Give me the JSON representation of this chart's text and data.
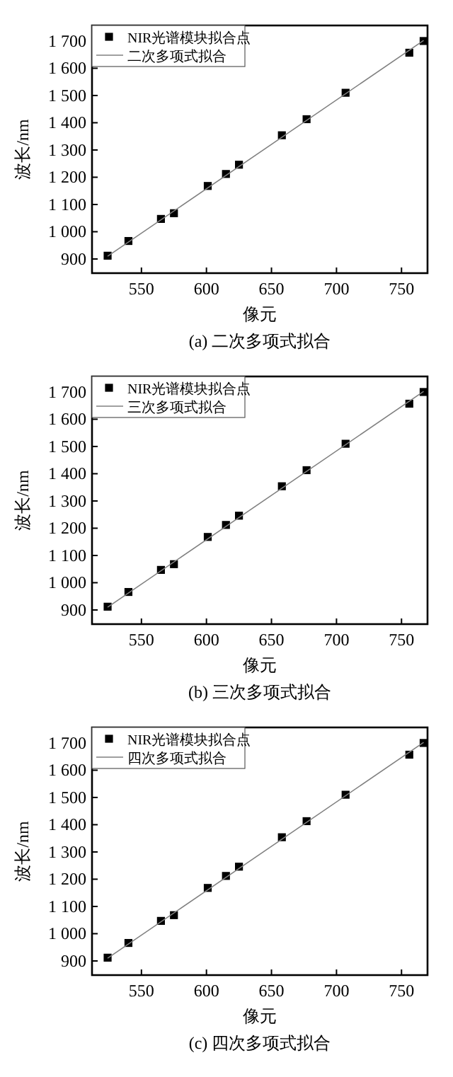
{
  "chart_data": [
    {
      "type": "scatter",
      "title": "(a) 二次多项式拟合",
      "xlabel": "像元",
      "ylabel": "波长/nm",
      "xlim": [
        512,
        770
      ],
      "ylim": [
        848,
        1757
      ],
      "xticks": [
        550,
        600,
        650,
        700,
        750
      ],
      "yticks": [
        {
          "value": 900,
          "label": "900"
        },
        {
          "value": 1000,
          "label": "1 000"
        },
        {
          "value": 1100,
          "label": "1 100"
        },
        {
          "value": 1200,
          "label": "1 200"
        },
        {
          "value": 1300,
          "label": "1 300"
        },
        {
          "value": 1400,
          "label": "1 400"
        },
        {
          "value": 1500,
          "label": "1 500"
        },
        {
          "value": 1600,
          "label": "1 600"
        },
        {
          "value": 1700,
          "label": "1 700"
        }
      ],
      "legend": "top left",
      "series": [
        {
          "name": "NIR光谱模块拟合点",
          "marker": "square",
          "color": "#000000",
          "x": [
            524,
            540,
            565,
            575,
            601,
            615,
            625,
            658,
            677,
            707,
            756,
            767
          ],
          "values": [
            912,
            966,
            1047,
            1068,
            1168,
            1212,
            1246,
            1354,
            1413,
            1510,
            1657,
            1700
          ]
        },
        {
          "name": "二次多项式拟合",
          "type": "line",
          "marker": "none",
          "color": "#808080",
          "x": [
            524,
            767
          ],
          "values": [
            910,
            1702
          ]
        }
      ]
    },
    {
      "type": "scatter",
      "title": "(b) 三次多项式拟合",
      "xlabel": "像元",
      "ylabel": "波长/nm",
      "xlim": [
        512,
        770
      ],
      "ylim": [
        848,
        1757
      ],
      "xticks": [
        550,
        600,
        650,
        700,
        750
      ],
      "yticks": [
        {
          "value": 900,
          "label": "900"
        },
        {
          "value": 1000,
          "label": "1 000"
        },
        {
          "value": 1100,
          "label": "1 100"
        },
        {
          "value": 1200,
          "label": "1 200"
        },
        {
          "value": 1300,
          "label": "1 300"
        },
        {
          "value": 1400,
          "label": "1 400"
        },
        {
          "value": 1500,
          "label": "1 500"
        },
        {
          "value": 1600,
          "label": "1 600"
        },
        {
          "value": 1700,
          "label": "1 700"
        }
      ],
      "legend": "top left",
      "series": [
        {
          "name": "NIR光谱模块拟合点",
          "marker": "square",
          "color": "#000000",
          "x": [
            524,
            540,
            565,
            575,
            601,
            615,
            625,
            658,
            677,
            707,
            756,
            767
          ],
          "values": [
            912,
            966,
            1047,
            1068,
            1168,
            1212,
            1246,
            1354,
            1413,
            1510,
            1657,
            1700
          ]
        },
        {
          "name": "三次多项式拟合",
          "type": "line",
          "marker": "none",
          "color": "#808080",
          "x": [
            524,
            767
          ],
          "values": [
            910,
            1702
          ]
        }
      ]
    },
    {
      "type": "scatter",
      "title": "(c) 四次多项式拟合",
      "xlabel": "像元",
      "ylabel": "波长/nm",
      "xlim": [
        512,
        770
      ],
      "ylim": [
        848,
        1757
      ],
      "xticks": [
        550,
        600,
        650,
        700,
        750
      ],
      "yticks": [
        {
          "value": 900,
          "label": "900"
        },
        {
          "value": 1000,
          "label": "1 000"
        },
        {
          "value": 1100,
          "label": "1 100"
        },
        {
          "value": 1200,
          "label": "1 200"
        },
        {
          "value": 1300,
          "label": "1 300"
        },
        {
          "value": 1400,
          "label": "1 400"
        },
        {
          "value": 1500,
          "label": "1 500"
        },
        {
          "value": 1600,
          "label": "1 600"
        },
        {
          "value": 1700,
          "label": "1 700"
        }
      ],
      "legend": "top left",
      "series": [
        {
          "name": "NIR光谱模块拟合点",
          "marker": "square",
          "color": "#000000",
          "x": [
            524,
            540,
            565,
            575,
            601,
            615,
            625,
            658,
            677,
            707,
            756,
            767
          ],
          "values": [
            912,
            966,
            1047,
            1068,
            1168,
            1212,
            1246,
            1354,
            1413,
            1510,
            1657,
            1700
          ]
        },
        {
          "name": "四次多项式拟合",
          "type": "line",
          "marker": "none",
          "color": "#808080",
          "x": [
            524,
            767
          ],
          "values": [
            910,
            1702
          ]
        }
      ]
    }
  ]
}
